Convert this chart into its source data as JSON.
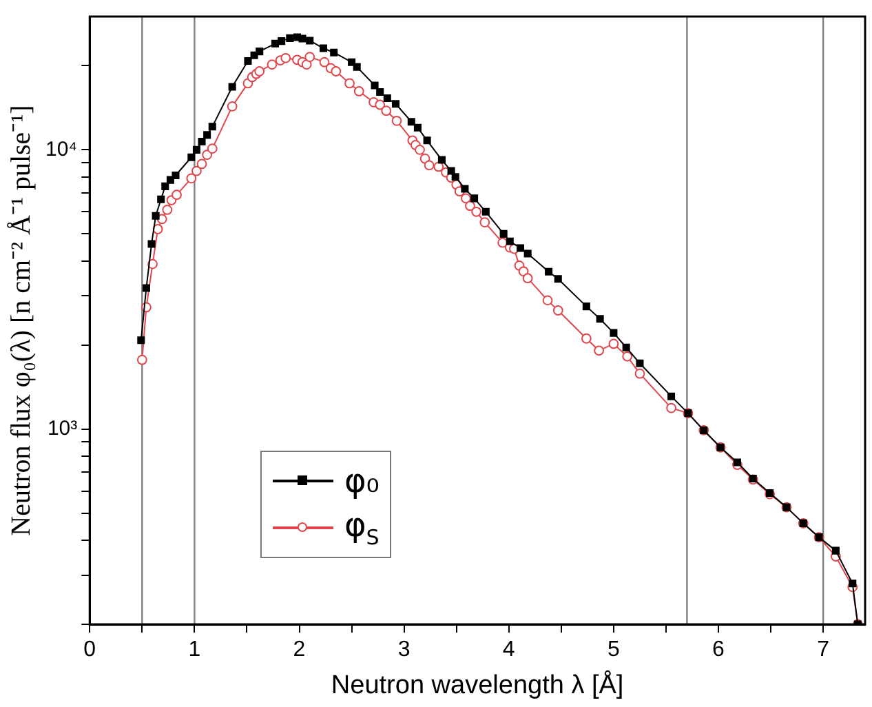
{
  "chart_data": {
    "type": "line",
    "xlabel": "Neutron wavelength λ [Å]",
    "ylabel": "Neutron flux φ₀(λ) [n cm⁻² Å⁻¹ pulse⁻¹]",
    "log": "y",
    "grid": false,
    "legend": "bottom left",
    "line_style": "solid",
    "xlim": [
      0,
      7.4
    ],
    "xticks": [
      0,
      {
        "value": 0.5,
        "label": null
      },
      1,
      {
        "value": 1.5,
        "label": null
      },
      2,
      {
        "value": 2.5,
        "label": null
      },
      3,
      {
        "value": 3.5,
        "label": null
      },
      4,
      {
        "value": 4.5,
        "label": null
      },
      5,
      {
        "value": 5.5,
        "label": null
      },
      6,
      {
        "value": 6.5,
        "label": null
      },
      7
    ],
    "ylim": [
      200,
      30000
    ],
    "yticks": [
      {
        "value": 200,
        "label": null
      },
      {
        "value": 300,
        "label": null
      },
      {
        "value": 400,
        "label": null
      },
      {
        "value": 500,
        "label": null
      },
      {
        "value": 600,
        "label": null
      },
      {
        "value": 700,
        "label": null
      },
      {
        "value": 800,
        "label": null
      },
      {
        "value": 900,
        "label": null
      },
      {
        "value": 1000,
        "label": "10³"
      },
      {
        "value": 2000,
        "label": null
      },
      {
        "value": 3000,
        "label": null
      },
      {
        "value": 4000,
        "label": null
      },
      {
        "value": 5000,
        "label": null
      },
      {
        "value": 6000,
        "label": null
      },
      {
        "value": 7000,
        "label": null
      },
      {
        "value": 8000,
        "label": null
      },
      {
        "value": 9000,
        "label": null
      },
      {
        "value": 10000,
        "label": "10⁴"
      },
      {
        "value": 20000,
        "label": null
      }
    ],
    "ref_lines": [
      {
        "axis": "x",
        "value": 0.5,
        "color": "#808080"
      },
      {
        "axis": "x",
        "value": 1,
        "color": "#808080"
      },
      {
        "axis": "x",
        "value": 5.7,
        "color": "#808080"
      },
      {
        "axis": "x",
        "value": 7,
        "color": "#808080"
      }
    ],
    "series": [
      {
        "name": "φ₀",
        "color": "#000000",
        "marker": "square",
        "x": [
          0.49,
          0.54,
          0.59,
          0.63,
          0.68,
          0.72,
          0.77,
          0.82,
          0.97,
          1.02,
          1.07,
          1.12,
          1.17,
          1.36,
          1.51,
          1.57,
          1.62,
          1.77,
          1.83,
          1.91,
          1.98,
          2.03,
          2.1,
          2.23,
          2.33,
          2.5,
          2.55,
          2.72,
          2.77,
          2.84,
          2.92,
          3.07,
          3.13,
          3.22,
          3.36,
          3.45,
          3.49,
          3.58,
          3.67,
          3.78,
          3.95,
          4.01,
          4.11,
          4.18,
          4.38,
          4.47,
          4.74,
          4.87,
          5.0,
          5.12,
          5.25,
          5.55,
          5.71,
          5.86,
          6.02,
          6.18,
          6.33,
          6.49,
          6.65,
          6.81,
          6.96,
          7.12,
          7.28,
          7.33
        ],
        "values": [
          2080,
          3200,
          4600,
          5800,
          6650,
          7400,
          7800,
          8100,
          9400,
          10000,
          10700,
          11300,
          12100,
          16800,
          20800,
          21800,
          22500,
          24000,
          24500,
          25100,
          25300,
          25000,
          24600,
          23100,
          22300,
          20600,
          19800,
          17000,
          16100,
          15300,
          14600,
          12600,
          12000,
          10800,
          9200,
          8400,
          8000,
          7250,
          6700,
          6000,
          5000,
          4700,
          4450,
          4250,
          3660,
          3450,
          2750,
          2480,
          2210,
          1960,
          1720,
          1310,
          1140,
          990,
          860,
          760,
          665,
          590,
          525,
          460,
          410,
          367,
          280,
          200
        ]
      },
      {
        "name": "φ$_{S}$",
        "color": "#e0474c",
        "marker": "circle",
        "x": [
          0.5,
          0.54,
          0.6,
          0.65,
          0.69,
          0.74,
          0.78,
          0.83,
          0.97,
          1.02,
          1.07,
          1.12,
          1.17,
          1.36,
          1.51,
          1.55,
          1.59,
          1.62,
          1.74,
          1.82,
          1.87,
          1.98,
          2.03,
          2.07,
          2.1,
          2.24,
          2.3,
          2.35,
          2.48,
          2.57,
          2.71,
          2.77,
          2.83,
          2.93,
          3.08,
          3.11,
          3.15,
          3.2,
          3.24,
          3.33,
          3.4,
          3.45,
          3.5,
          3.53,
          3.59,
          3.63,
          3.69,
          3.77,
          3.94,
          4.01,
          4.05,
          4.1,
          4.14,
          4.18,
          4.37,
          4.47,
          4.74,
          4.86,
          5.0,
          5.13,
          5.25,
          5.55,
          5.71,
          5.86,
          6.02,
          6.18,
          6.33,
          6.49,
          6.65,
          6.81,
          6.96,
          7.12,
          7.28,
          7.33
        ],
        "values": [
          1770,
          2730,
          3900,
          5200,
          5650,
          6100,
          6600,
          6900,
          7900,
          8400,
          8900,
          9600,
          10100,
          14300,
          17300,
          18200,
          18700,
          19100,
          20200,
          20900,
          21300,
          21000,
          20600,
          20200,
          21500,
          20600,
          19600,
          19100,
          17300,
          16200,
          14800,
          14500,
          13800,
          12700,
          10800,
          10400,
          10000,
          9300,
          8800,
          8700,
          8300,
          7950,
          7500,
          7100,
          6700,
          6300,
          6000,
          5500,
          4650,
          4470,
          4420,
          3850,
          3670,
          3470,
          2890,
          2660,
          2110,
          1910,
          2020,
          1820,
          1580,
          1190,
          1140,
          990,
          860,
          745,
          660,
          585,
          525,
          460,
          410,
          350,
          272,
          200
        ]
      }
    ]
  }
}
